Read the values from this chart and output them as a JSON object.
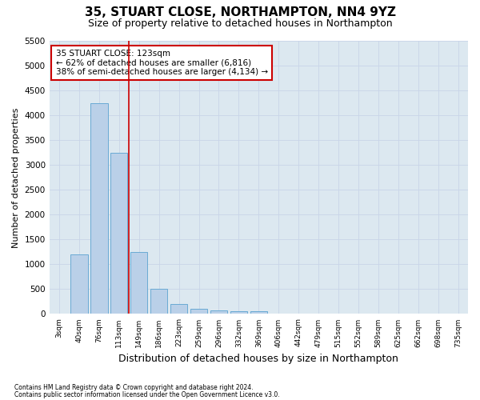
{
  "title": "35, STUART CLOSE, NORTHAMPTON, NN4 9YZ",
  "subtitle": "Size of property relative to detached houses in Northampton",
  "xlabel": "Distribution of detached houses by size in Northampton",
  "ylabel": "Number of detached properties",
  "footnote1": "Contains HM Land Registry data © Crown copyright and database right 2024.",
  "footnote2": "Contains public sector information licensed under the Open Government Licence v3.0.",
  "bar_labels": [
    "3sqm",
    "40sqm",
    "76sqm",
    "113sqm",
    "149sqm",
    "186sqm",
    "223sqm",
    "259sqm",
    "296sqm",
    "332sqm",
    "369sqm",
    "406sqm",
    "442sqm",
    "479sqm",
    "515sqm",
    "552sqm",
    "589sqm",
    "625sqm",
    "662sqm",
    "698sqm",
    "735sqm"
  ],
  "bar_values": [
    0,
    1200,
    4250,
    3250,
    1250,
    500,
    200,
    100,
    75,
    50,
    50,
    0,
    0,
    0,
    0,
    0,
    0,
    0,
    0,
    0,
    0
  ],
  "bar_color": "#bad0e8",
  "bar_edge_color": "#6aaad4",
  "vline_x": 3.5,
  "vline_color": "#cc0000",
  "annotation_text": "35 STUART CLOSE: 123sqm\n← 62% of detached houses are smaller (6,816)\n38% of semi-detached houses are larger (4,134) →",
  "annotation_box_color": "white",
  "annotation_box_edge": "#cc0000",
  "ylim": [
    0,
    5500
  ],
  "yticks": [
    0,
    500,
    1000,
    1500,
    2000,
    2500,
    3000,
    3500,
    4000,
    4500,
    5000,
    5500
  ],
  "grid_color": "#c8d4e8",
  "background_color": "#dce8f0",
  "title_fontsize": 11,
  "subtitle_fontsize": 9,
  "xlabel_fontsize": 9,
  "ylabel_fontsize": 8
}
